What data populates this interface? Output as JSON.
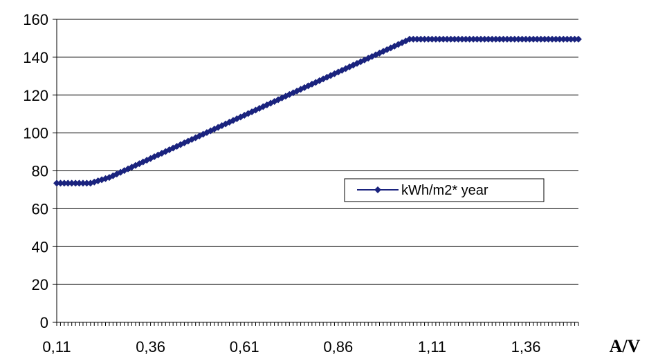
{
  "chart_data": {
    "type": "line",
    "title": "",
    "xlabel": "A/V",
    "ylabel": "",
    "ylim": [
      0,
      160
    ],
    "xlim": [
      0.11,
      1.5
    ],
    "yticks": [
      0,
      20,
      40,
      60,
      80,
      100,
      120,
      140,
      160
    ],
    "xtick_labels": [
      "0,11",
      "0,36",
      "0,61",
      "0,86",
      "1,11",
      "1,36"
    ],
    "xtick_values": [
      0.11,
      0.36,
      0.61,
      0.86,
      1.11,
      1.36
    ],
    "grid": "horizontal",
    "legend": "center-right",
    "colors": {
      "series": "#1a237e"
    },
    "series": [
      {
        "name": "kWh/m2* year",
        "x": [
          0.11,
          0.2,
          0.25,
          1.05,
          1.5
        ],
        "y": [
          73.5,
          73.5,
          76.5,
          149.5,
          149.5
        ]
      }
    ]
  }
}
